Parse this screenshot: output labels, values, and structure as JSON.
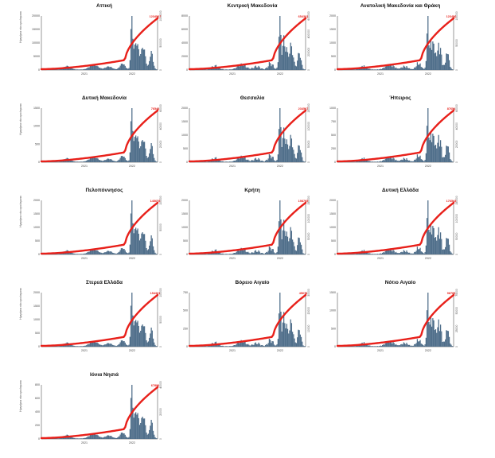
{
  "colors": {
    "bars": "#4f6e8a",
    "line": "#e8201a",
    "axis": "#333333",
    "label": "#e8201a"
  },
  "x_tick_labels": [
    "2021",
    "2022"
  ],
  "chart_data": [
    {
      "type": "bar+line",
      "title": "Αττική",
      "ylabel": "Ημερήσια νέα κρούσματα",
      "end_label": "1234567",
      "y_ticks": [
        "0",
        "5000",
        "10000",
        "15000",
        "20000"
      ],
      "y2_ticks": [
        "0",
        "500000",
        "1000000"
      ],
      "series": "A"
    },
    {
      "type": "bar+line",
      "title": "Κεντρική Μακεδονία",
      "ylabel": "",
      "end_label": "654321",
      "y_ticks": [
        "0",
        "2000",
        "4000",
        "6000",
        "8000"
      ],
      "y2_ticks": [
        "0",
        "200000",
        "400000",
        "600000"
      ],
      "series": "B"
    },
    {
      "type": "bar+line",
      "title": "Ανατολική Μακεδονία και Θράκη",
      "ylabel": "",
      "end_label": "123456",
      "y_ticks": [
        "0",
        "500",
        "1000",
        "1500",
        "2000"
      ],
      "y2_ticks": [
        "0",
        "50000",
        "100000"
      ],
      "series": "C"
    },
    {
      "type": "bar+line",
      "title": "Δυτική Μακεδονία",
      "ylabel": "Ημερήσια νέα κρούσματα",
      "end_label": "76543",
      "y_ticks": [
        "0",
        "500",
        "1000",
        "1500"
      ],
      "y2_ticks": [
        "0",
        "20000",
        "40000",
        "60000"
      ],
      "series": "A"
    },
    {
      "type": "bar+line",
      "title": "Θεσσαλία",
      "ylabel": "",
      "end_label": "234567",
      "y_ticks": [
        "0",
        "500",
        "1000",
        "1500",
        "2000"
      ],
      "y2_ticks": [
        "0",
        "50000",
        "100000",
        "150000"
      ],
      "series": "B"
    },
    {
      "type": "bar+line",
      "title": "Ήπειρος",
      "ylabel": "",
      "end_label": "87654",
      "y_ticks": [
        "0",
        "250",
        "500",
        "750",
        "1000"
      ],
      "y2_ticks": [
        "0",
        "20000",
        "40000",
        "60000"
      ],
      "series": "C"
    },
    {
      "type": "bar+line",
      "title": "Πελοπόννησος",
      "ylabel": "Ημερήσια νέα κρούσματα",
      "end_label": "145678",
      "y_ticks": [
        "0",
        "500",
        "1000",
        "1500",
        "2000"
      ],
      "y2_ticks": [
        "0",
        "50000",
        "100000"
      ],
      "series": "A"
    },
    {
      "type": "bar+line",
      "title": "Κρήτη",
      "ylabel": "",
      "end_label": "198765",
      "y_ticks": [
        "0",
        "500",
        "1000",
        "1500",
        "2000"
      ],
      "y2_ticks": [
        "0",
        "50000",
        "100000",
        "150000"
      ],
      "series": "B"
    },
    {
      "type": "bar+line",
      "title": "Δυτική Ελλάδα",
      "ylabel": "",
      "end_label": "176543",
      "y_ticks": [
        "0",
        "500",
        "1000",
        "1500",
        "2000"
      ],
      "y2_ticks": [
        "0",
        "50000",
        "100000",
        "150000"
      ],
      "series": "C"
    },
    {
      "type": "bar+line",
      "title": "Στερεά Ελλάδα",
      "ylabel": "Ημερήσια νέα κρούσματα",
      "end_label": "154321",
      "y_ticks": [
        "0",
        "500",
        "1000",
        "1500",
        "2000"
      ],
      "y2_ticks": [
        "0",
        "50000",
        "100000"
      ],
      "series": "A"
    },
    {
      "type": "bar+line",
      "title": "Βόρειο Αιγαίο",
      "ylabel": "",
      "end_label": "45678",
      "y_ticks": [
        "0",
        "250",
        "500",
        "750"
      ],
      "y2_ticks": [
        "0",
        "10000",
        "20000",
        "30000"
      ],
      "series": "B"
    },
    {
      "type": "bar+line",
      "title": "Νότιο Αιγαίο",
      "ylabel": "",
      "end_label": "98765",
      "y_ticks": [
        "0",
        "500",
        "1000",
        "1500"
      ],
      "y2_ticks": [
        "0",
        "25000",
        "50000",
        "75000"
      ],
      "series": "C"
    },
    {
      "type": "bar+line",
      "title": "Ιόνια Νησιά",
      "ylabel": "Ημερήσια νέα κρούσματα",
      "end_label": "67890",
      "y_ticks": [
        "0",
        "200",
        "400",
        "600",
        "800"
      ],
      "y2_ticks": [
        "0",
        "20000",
        "40000"
      ],
      "series": "A"
    }
  ]
}
